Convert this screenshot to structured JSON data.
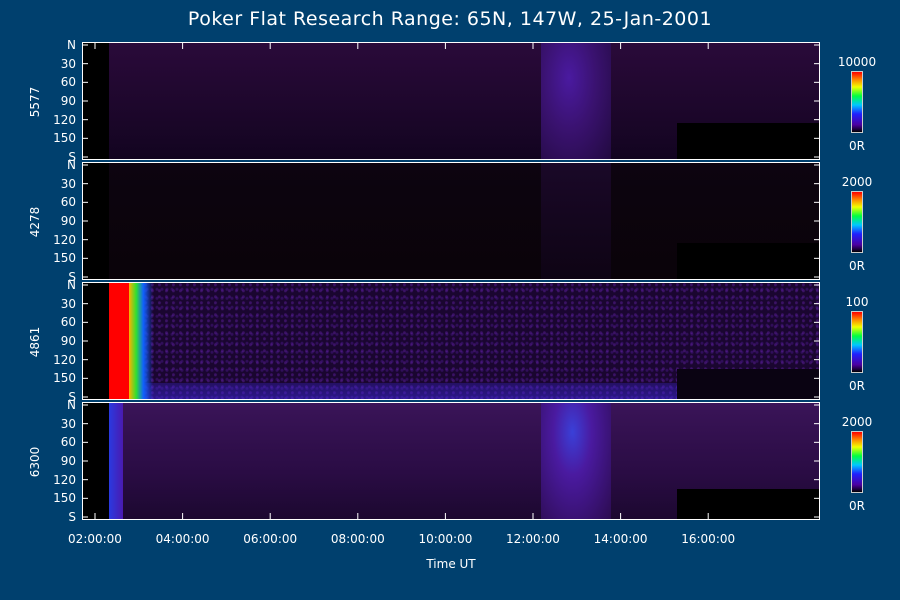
{
  "title": "Poker Flat Research Range: 65N, 147W, 25-Jan-2001",
  "chart_data": {
    "type": "heatmap",
    "xlabel": "Time UT",
    "x_ticks": [
      "02:00:00",
      "04:00:00",
      "06:00:00",
      "08:00:00",
      "10:00:00",
      "12:00:00",
      "14:00:00",
      "16:00:00"
    ],
    "y_ticks": [
      "N",
      "30",
      "60",
      "90",
      "120",
      "150",
      "S"
    ],
    "panels": [
      {
        "ylabel": "5577",
        "colorbar_max": "10000",
        "colorbar_min": "0R"
      },
      {
        "ylabel": "4278",
        "colorbar_max": "2000",
        "colorbar_min": "0R"
      },
      {
        "ylabel": "4861",
        "colorbar_max": "100",
        "colorbar_min": "0R"
      },
      {
        "ylabel": "6300",
        "colorbar_max": "2000",
        "colorbar_min": "0R"
      }
    ]
  },
  "colors": {
    "background": "#00406e",
    "plot_background": "#000000",
    "emission_low": "#2a0a40",
    "emission_mid": "#5a1a9a",
    "saturated": "#ff0000"
  }
}
